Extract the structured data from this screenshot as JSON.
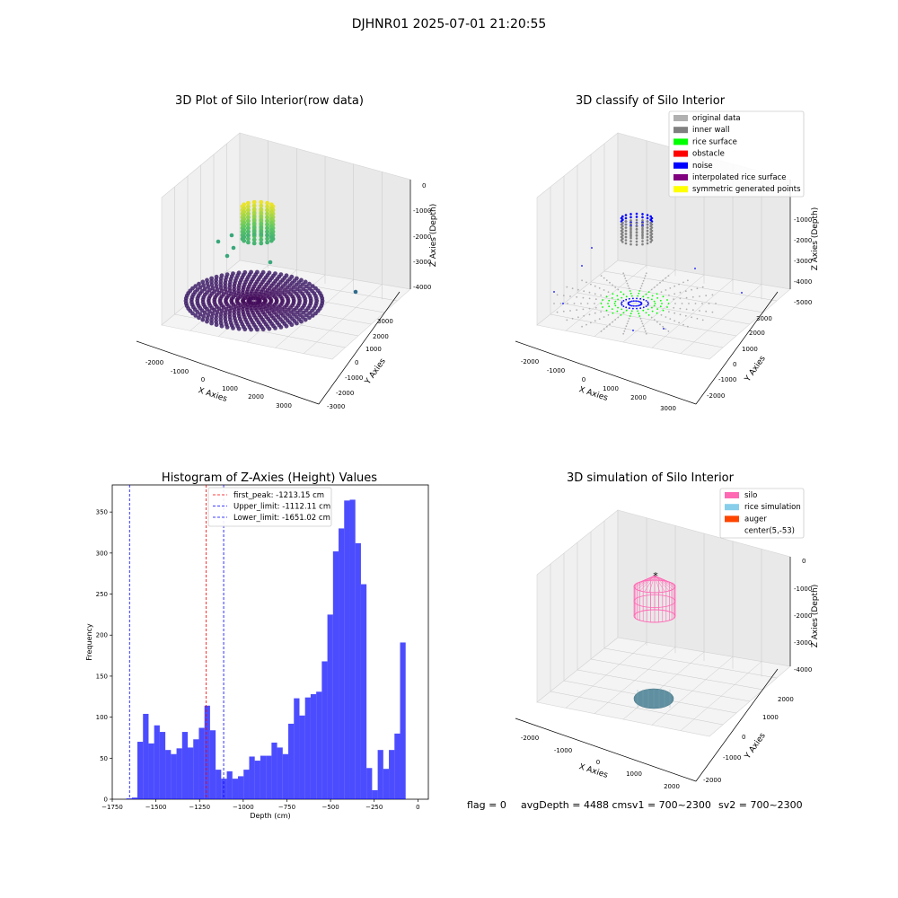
{
  "figure": {
    "title": "DJHNR01 2025-07-01 21:20:55",
    "footer": {
      "flag": "flag = 0",
      "avg": "avgDepth = 4488 cmsv1 = 700~2300",
      "sv2": "sv2 = 700~2300"
    }
  },
  "panels": {
    "raw": {
      "title": "3D Plot of Silo Interior(row data)",
      "xlabel": "X Axies",
      "ylabel": "Y Axies",
      "zlabel": "Z Axies (Depth)",
      "xticks": [
        "-2000",
        "-1000",
        "0",
        "1000",
        "2000",
        "3000"
      ],
      "yticks": [
        "-3000",
        "-2000",
        "-1000",
        "0",
        "1000",
        "2000",
        "3000"
      ],
      "zticks": [
        "0",
        "-1000",
        "-2000",
        "-3000",
        "-4000"
      ]
    },
    "classify": {
      "title": "3D classify of Silo Interior",
      "xlabel": "X Axies",
      "ylabel": "Y Axies",
      "zlabel": "Z Axies (Depth)",
      "xticks": [
        "-2000",
        "-1000",
        "0",
        "1000",
        "2000",
        "3000"
      ],
      "yticks": [
        "-2000",
        "-1000",
        "0",
        "1000",
        "2000",
        "3000"
      ],
      "zticks": [
        "-1000",
        "-2000",
        "-3000",
        "-4000",
        "-5000"
      ],
      "legend": [
        {
          "label": "original data",
          "color": "#b0b0b0"
        },
        {
          "label": "inner wall",
          "color": "#808080"
        },
        {
          "label": "rice surface",
          "color": "#00ff00"
        },
        {
          "label": "obstacle",
          "color": "#ff0000"
        },
        {
          "label": "noise",
          "color": "#0000ff"
        },
        {
          "label": "interpolated rice surface",
          "color": "#800080"
        },
        {
          "label": "symmetric generated points",
          "color": "#ffff00"
        }
      ]
    },
    "histogram": {
      "title": "Histogram of Z-Axies (Height) Values",
      "xlabel": "Depth (cm)",
      "ylabel": "Frequency",
      "legend": [
        {
          "label": "first_peak: -1213.15 cm",
          "color": "#ff0000"
        },
        {
          "label": "Upper_limit: -1112.11 cm",
          "color": "#0000ff"
        },
        {
          "label": "Lower_limit: -1651.02 cm",
          "color": "#0000ff"
        }
      ]
    },
    "simulation": {
      "title": "3D simulation of Silo Interior",
      "xlabel": "X Axies",
      "ylabel": "Y Axies",
      "zlabel": "Z Axies (Depth)",
      "xticks": [
        "-2000",
        "-1000",
        "0",
        "1000",
        "2000"
      ],
      "yticks": [
        "-2000",
        "-1000",
        "0",
        "1000",
        "2000"
      ],
      "zticks": [
        "0",
        "-1000",
        "-2000",
        "-3000",
        "-4000"
      ],
      "legend": [
        {
          "label": "silo",
          "color": "#ff69b4"
        },
        {
          "label": "rice simulation",
          "color": "#87ceeb"
        },
        {
          "label": "auger",
          "color": "#ff4500"
        },
        {
          "label": "center(5,-53)",
          "color": "#000000"
        }
      ]
    }
  },
  "chart_data": [
    {
      "type": "scatter",
      "title": "3D Plot of Silo Interior(row data)",
      "xlabel": "X Axies",
      "ylabel": "Y Axies",
      "zlabel": "Z Axies (Depth)",
      "xlim": [
        -2500,
        3500
      ],
      "ylim": [
        -3000,
        3500
      ],
      "zlim": [
        -4500,
        200
      ],
      "colormap": "viridis",
      "colors": {
        "low": "#440154",
        "mid": "#21918c",
        "high": "#fde725"
      }
    },
    {
      "type": "scatter",
      "title": "3D classify of Silo Interior",
      "xlabel": "X Axies",
      "ylabel": "Y Axies",
      "zlabel": "Z Axies (Depth)",
      "xlim": [
        -2500,
        3500
      ],
      "ylim": [
        -2500,
        3500
      ],
      "zlim": [
        -5500,
        -500
      ]
    },
    {
      "type": "bar",
      "title": "Histogram of Z-Axies (Height) Values",
      "xlabel": "Depth (cm)",
      "ylabel": "Frequency",
      "xlim": [
        -1750,
        60
      ],
      "ylim": [
        0,
        383
      ],
      "xticks": [
        -1750,
        -1500,
        -1250,
        -1000,
        -750,
        -500,
        -250,
        0
      ],
      "yticks": [
        0,
        50,
        100,
        150,
        200,
        250,
        300,
        350
      ],
      "bin_start": -1670,
      "bin_width": 32,
      "values": [
        1,
        2,
        70,
        104,
        68,
        90,
        82,
        60,
        55,
        62,
        82,
        63,
        73,
        87,
        114,
        84,
        36,
        25,
        34,
        25,
        28,
        36,
        52,
        47,
        53,
        53,
        69,
        63,
        55,
        92,
        123,
        102,
        124,
        128,
        131,
        168,
        225,
        302,
        330,
        364,
        365,
        312,
        262,
        38,
        11,
        60,
        37,
        60,
        80,
        191
      ],
      "bar_color": "#0000ff",
      "lines": [
        {
          "name": "first_peak: -1213.15 cm",
          "x": -1213.15,
          "color": "#ff0000"
        },
        {
          "name": "Upper_limit: -1112.11 cm",
          "x": -1112.11,
          "color": "#0000ff"
        },
        {
          "name": "Lower_limit: -1651.02 cm",
          "x": -1651.02,
          "color": "#0000ff"
        }
      ]
    },
    {
      "type": "scatter",
      "title": "3D simulation of Silo Interior",
      "xlabel": "X Axies",
      "ylabel": "Y Axies",
      "zlabel": "Z Axies (Depth)",
      "xlim": [
        -2500,
        2500
      ],
      "ylim": [
        -2500,
        2500
      ],
      "zlim": [
        -4500,
        200
      ]
    }
  ]
}
